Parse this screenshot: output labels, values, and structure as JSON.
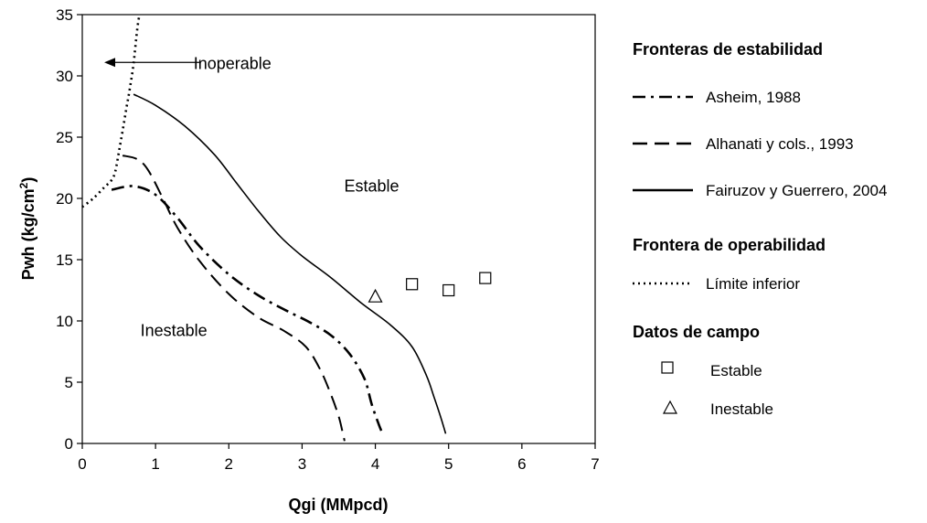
{
  "chart_data": {
    "type": "line",
    "xlabel": "Qgi (MMpcd)",
    "ylabel": "Pwh (kg/cm",
    "ylabel_sup": "2",
    "ylabel_close": ")",
    "xlim": [
      0,
      7
    ],
    "ylim": [
      0,
      35
    ],
    "x_ticks": [
      "0",
      "1",
      "2",
      "3",
      "4",
      "5",
      "6",
      "7"
    ],
    "y_ticks": [
      "0",
      "5",
      "10",
      "15",
      "20",
      "25",
      "30",
      "35"
    ],
    "grid": false,
    "annotations": [
      {
        "text": "Inoperable",
        "x": 2.05,
        "y": 31.0
      },
      {
        "text": "Estable",
        "x": 3.95,
        "y": 21.0
      },
      {
        "text": "Inestable",
        "x": 1.25,
        "y": 9.2
      }
    ],
    "arrow": {
      "from": [
        1.6,
        31.1
      ],
      "to": [
        0.3,
        31.1
      ]
    },
    "series": [
      {
        "name": "Asheim, 1988",
        "style": "dashdot",
        "x": [
          0.4,
          0.7,
          1.0,
          1.3,
          1.6,
          2.0,
          2.4,
          2.8,
          3.1,
          3.4,
          3.65,
          3.85,
          3.95,
          4.05,
          4.1
        ],
        "y": [
          20.7,
          21.0,
          20.3,
          18.4,
          16.1,
          13.8,
          12.1,
          10.8,
          9.9,
          8.8,
          7.3,
          5.3,
          3.2,
          1.5,
          0.8
        ]
      },
      {
        "name": "Alhanati y cols., 1993",
        "style": "dashed",
        "x": [
          0.55,
          0.75,
          0.9,
          1.1,
          1.3,
          1.6,
          2.0,
          2.4,
          2.75,
          3.05,
          3.25,
          3.4,
          3.5,
          3.55,
          3.58
        ],
        "y": [
          23.5,
          23.2,
          22.3,
          20.0,
          17.6,
          14.9,
          12.2,
          10.3,
          9.2,
          7.9,
          6.0,
          3.9,
          2.2,
          1.0,
          0.2
        ]
      },
      {
        "name": "Fairuzov y Guerrero, 2004",
        "style": "solid",
        "x": [
          0.7,
          1.0,
          1.4,
          1.8,
          2.1,
          2.4,
          2.7,
          3.0,
          3.4,
          3.8,
          4.2,
          4.5,
          4.7,
          4.8,
          4.9,
          4.96
        ],
        "y": [
          28.5,
          27.6,
          25.9,
          23.6,
          21.3,
          19.0,
          16.9,
          15.3,
          13.5,
          11.5,
          9.7,
          7.9,
          5.5,
          3.8,
          2.0,
          0.8
        ]
      },
      {
        "name": "Límite inferior",
        "style": "dotted",
        "x": [
          0.0,
          0.15,
          0.3,
          0.4,
          0.45,
          0.5,
          0.55,
          0.6,
          0.65,
          0.7,
          0.75,
          0.78
        ],
        "y": [
          19.3,
          20.0,
          20.9,
          21.5,
          22.2,
          23.8,
          25.5,
          27.3,
          29.0,
          31.0,
          33.8,
          35.0
        ]
      }
    ],
    "field_data": [
      {
        "name": "Estable",
        "marker": "square",
        "x": [
          4.5,
          5.0,
          5.5
        ],
        "y": [
          13.0,
          12.5,
          13.5
        ]
      },
      {
        "name": "Inestable",
        "marker": "triangle",
        "x": [
          4.0
        ],
        "y": [
          12.0
        ]
      }
    ],
    "legend": {
      "placement": "right",
      "groups": [
        {
          "title": "Fronteras de estabilidad",
          "entries": [
            "Asheim, 1988",
            "Alhanati y cols., 1993",
            "Fairuzov y Guerrero, 2004"
          ]
        },
        {
          "title": "Frontera de operabilidad",
          "entries": [
            "Límite inferior"
          ]
        },
        {
          "title": "Datos de campo",
          "entries": [
            "Estable",
            "Inestable"
          ]
        }
      ]
    }
  }
}
